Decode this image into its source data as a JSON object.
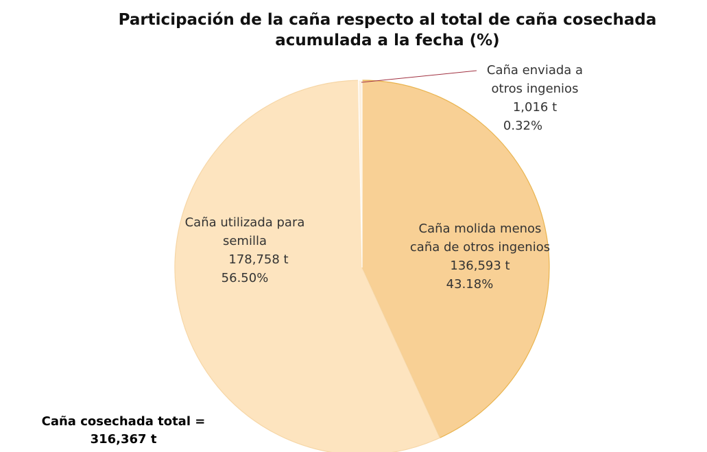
{
  "chart_data": {
    "type": "pie",
    "title": [
      "Participación de la caña respecto al total de caña cosechada",
      "acumulada a la fecha (%)"
    ],
    "categories": [
      "Caña molida menos caña de otros ingenios",
      "Caña utilizada para semilla",
      "Caña enviada a otros ingenios"
    ],
    "values": [
      43.18,
      56.5,
      0.32
    ],
    "value_labels": [
      "43.18%",
      "56.50%",
      "0.32%"
    ],
    "tonnes_labels": [
      "136,593 t",
      "178,758 t",
      "1,016 t"
    ],
    "colors": [
      "#f8d095",
      "#fde4bf",
      "#fdf1e0"
    ],
    "annotation": "Caña cosechada total = 316,367 t"
  }
}
